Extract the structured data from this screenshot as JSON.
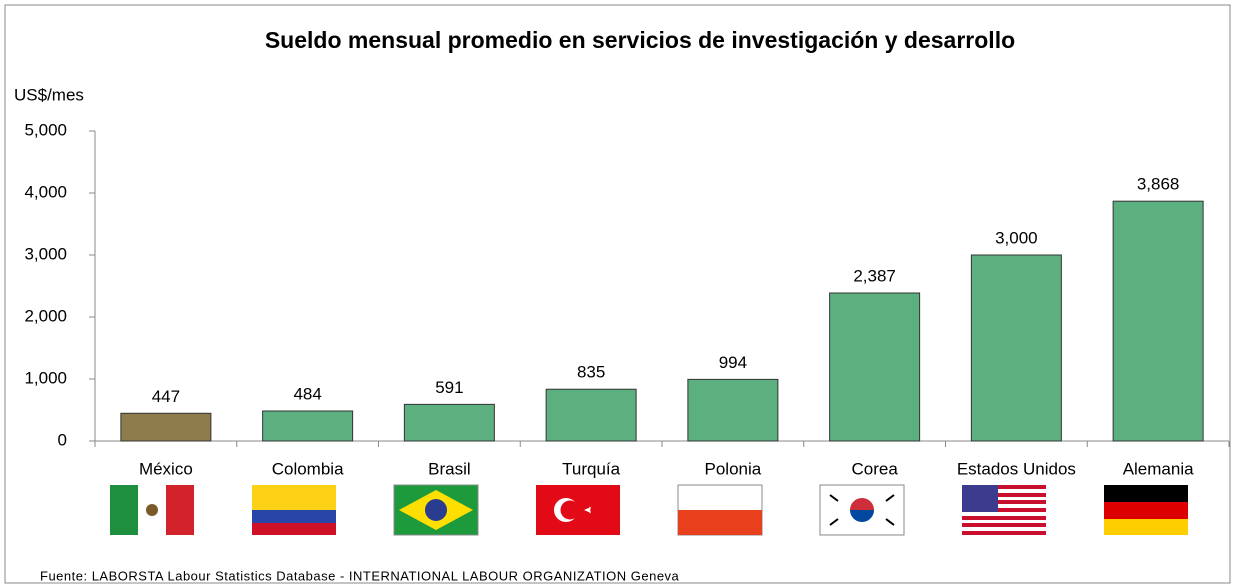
{
  "chart_data": {
    "type": "bar",
    "title": "Sueldo mensual promedio en servicios de investigación y desarrollo",
    "y_label": "US$/mes",
    "source": "Fuente: LABORSTA Labour Statistics Database - INTERNATIONAL LABOUR ORGANIZATION Geneva",
    "categories": [
      "México",
      "Colombia",
      "Brasil",
      "Turquía",
      "Polonia",
      "Corea",
      "Estados Unidos",
      "Alemania"
    ],
    "values": [
      447,
      484,
      591,
      835,
      994,
      2387,
      3000,
      3868
    ],
    "value_labels": [
      "447",
      "484",
      "591",
      "835",
      "994",
      "2,387",
      "3,000",
      "3,868"
    ],
    "colors": [
      "#8f7c4c",
      "#5cb080",
      "#5cb080",
      "#5cb080",
      "#5cb080",
      "#5cb080",
      "#5cb080",
      "#5cb080"
    ],
    "ylim": [
      0,
      5000
    ],
    "yticks": [
      0,
      {
        "value": 1000,
        "label": "1,000"
      },
      {
        "value": 2000,
        "label": "2,000"
      },
      {
        "value": 3000,
        "label": "3,000"
      },
      {
        "value": 4000,
        "label": "4,000"
      },
      {
        "value": 5000,
        "label": "5,000"
      }
    ],
    "grid": false
  }
}
